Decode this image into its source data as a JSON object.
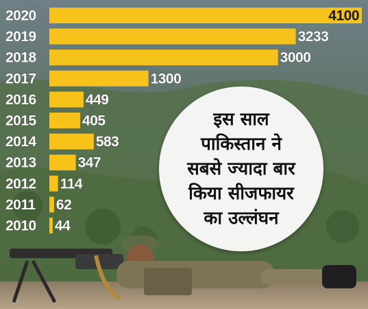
{
  "chart_data": {
    "type": "bar",
    "orientation": "horizontal",
    "categories": [
      "2020",
      "2019",
      "2018",
      "2017",
      "2016",
      "2015",
      "2014",
      "2013",
      "2012",
      "2011",
      "2010"
    ],
    "values": [
      4100,
      3233,
      3000,
      1300,
      449,
      405,
      583,
      347,
      114,
      62,
      44
    ],
    "value_labels": [
      "4100",
      "3233",
      "3000",
      "1300",
      "449",
      "405",
      "583",
      "347",
      "114",
      "62",
      "44"
    ],
    "bar_color": "#f7c21a",
    "xlim": [
      0,
      4100
    ],
    "grid": false,
    "legend": "none"
  },
  "callout": {
    "lines": [
      "इस साल",
      "पाकिस्तान ने",
      "सबसे ज्यादा बार",
      "किया सीजफायर",
      "का उल्लंघन"
    ]
  },
  "colors": {
    "bar": "#f7c21a",
    "label_text": "#ffffff",
    "callout_bg": "#f4f4f2",
    "callout_text": "#111111"
  }
}
